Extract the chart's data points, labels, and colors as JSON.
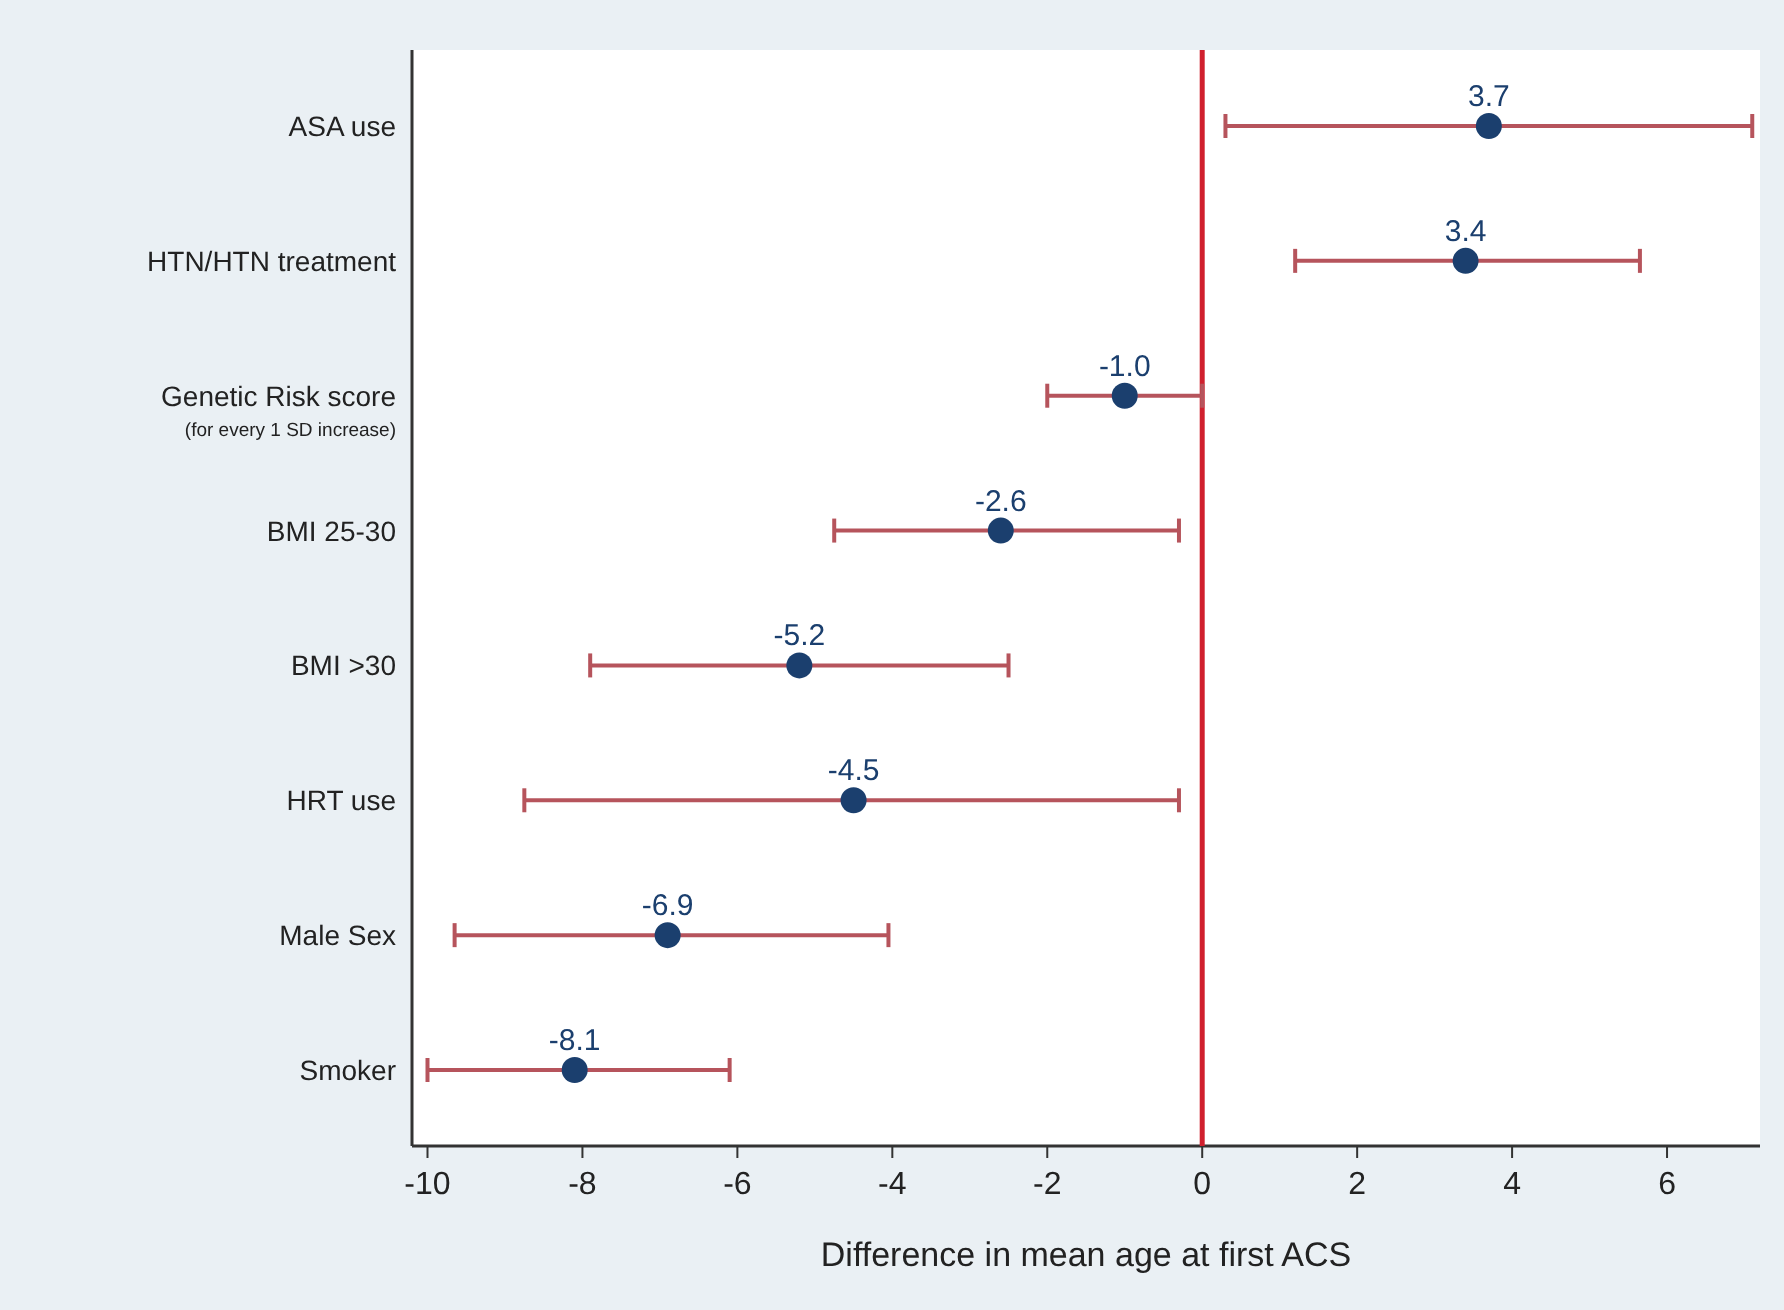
{
  "chart_data": {
    "type": "scatter",
    "orientation": "horizontal",
    "xlabel": "Difference in mean age at first ACS",
    "categories": [
      "ASA use",
      "HTN/HTN treatment",
      "Genetic Risk score\n(for every 1 SD increase)",
      "BMI 25-30",
      "BMI >30",
      "HRT use",
      "Male Sex",
      "Smoker"
    ],
    "series": [
      {
        "color": "#1b3f6e",
        "values": [
          3.7,
          3.4,
          -1.0,
          -2.6,
          -5.2,
          -4.5,
          -6.9,
          -8.1
        ],
        "errors": [
          [
            0.3,
            7.1
          ],
          [
            1.2,
            5.65
          ],
          [
            -2.0,
            0
          ],
          [
            -4.75,
            -0.3
          ],
          [
            -7.9,
            -2.5
          ],
          [
            -8.75,
            -0.3
          ],
          [
            -9.65,
            -4.05
          ],
          [
            -10.0,
            -6.1
          ]
        ],
        "value_labels": [
          "3.7",
          "3.4",
          "-1.0",
          "-2.6",
          "-5.2",
          "-4.5",
          "-6.9",
          "-8.1"
        ]
      }
    ],
    "marker": "circle",
    "grid": false,
    "xlim": [
      -10.2,
      7.2
    ],
    "xticks": [
      -10,
      -8,
      -6,
      -4,
      -2,
      0,
      2,
      4,
      6
    ],
    "ref_lines": [
      {
        "axis": "x",
        "value": 0,
        "color": "#d0202e"
      }
    ]
  }
}
